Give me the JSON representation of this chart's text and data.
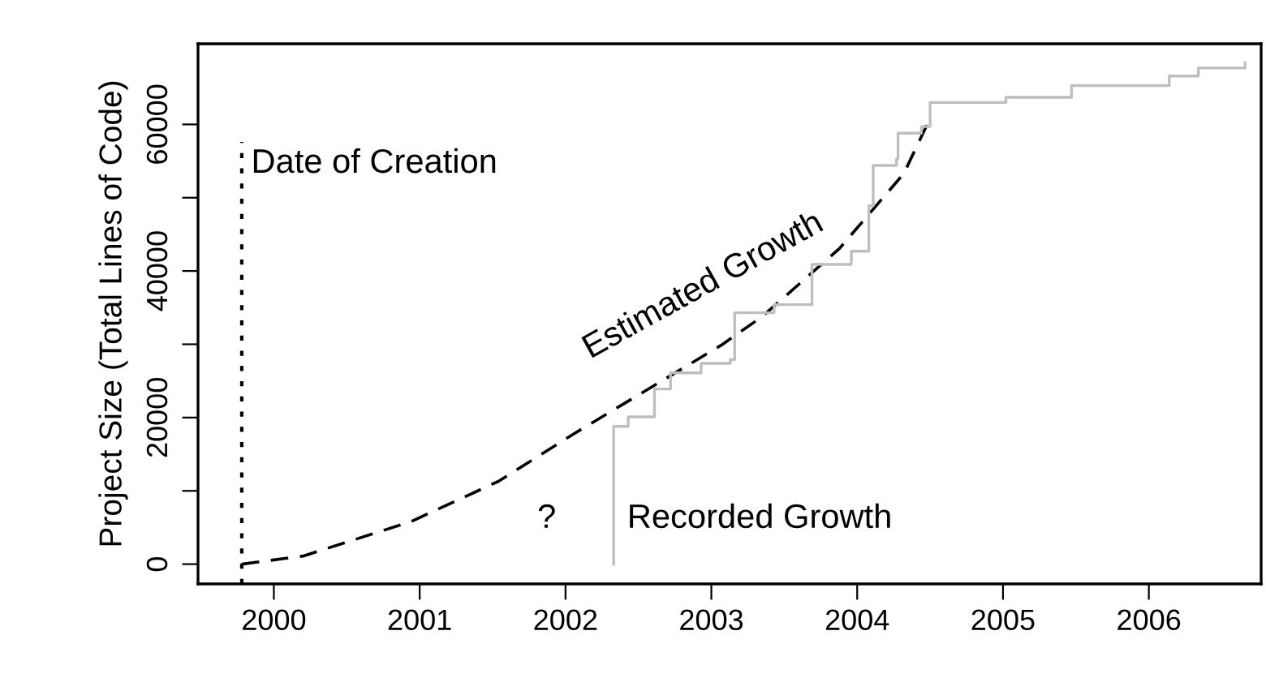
{
  "chart_data": {
    "type": "line",
    "ylabel": "Project Size (Total Lines of Code)",
    "xlim": [
      1999.48,
      2006.77
    ],
    "ylim": [
      -2700,
      71000
    ],
    "xticks": [
      2000,
      2001,
      2002,
      2003,
      2004,
      2005,
      2006
    ],
    "yticks": [
      0,
      {
        "value": 10000,
        "label": null
      },
      20000,
      {
        "value": 30000,
        "label": null
      },
      40000,
      {
        "value": 50000,
        "label": null
      },
      60000
    ],
    "grid": false,
    "legend": false,
    "series": [
      {
        "name": "Estimated Growth",
        "line_style": "dashed",
        "color": "#000000",
        "x": [
          1999.78,
          2000.2,
          2000.94,
          2001.54,
          2002.05,
          2003.07,
          2003.35,
          2003.88,
          2004.32,
          2004.48
        ],
        "values": [
          0,
          1100,
          5800,
          11300,
          17700,
          29900,
          33800,
          43100,
          53300,
          60000
        ]
      },
      {
        "name": "Recorded Growth",
        "type": "step",
        "line_style": "solid",
        "color": "#bebebe",
        "x": [
          2002.33,
          2002.33,
          2002.43,
          2002.61,
          2002.72,
          2002.93,
          2003.13,
          2003.16,
          2003.43,
          2003.69,
          2003.96,
          2004.08,
          2004.11,
          2004.27,
          2004.28,
          2004.44,
          2004.5,
          2005.02,
          2005.47,
          2006.14,
          2006.34,
          2006.66
        ],
        "values": [
          0,
          18800,
          20100,
          23900,
          26100,
          27400,
          27900,
          34300,
          35400,
          40900,
          42700,
          48900,
          54400,
          55300,
          58800,
          59700,
          63000,
          63700,
          65300,
          66600,
          67700,
          68400
        ]
      }
    ],
    "ref_lines": [
      {
        "axis": "x",
        "value": 1999.78,
        "label": "Date of Creation",
        "line_style": "dotted",
        "color": "#000000"
      }
    ],
    "annotations": [
      "?"
    ]
  }
}
